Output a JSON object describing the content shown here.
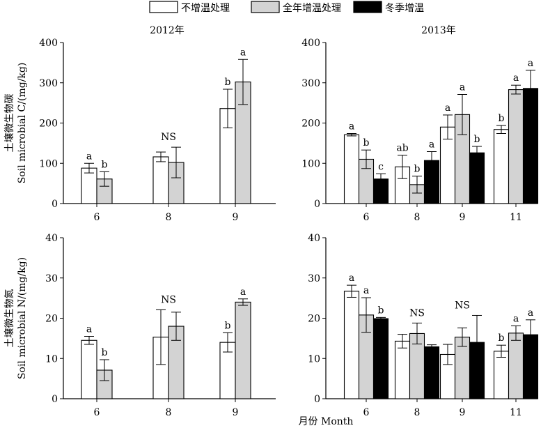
{
  "legend": [
    {
      "label": "不增温处理",
      "color": "#ffffff"
    },
    {
      "label": "全年增温处理",
      "color": "#d3d3d3"
    },
    {
      "label": "冬季增温",
      "color": "#000000"
    }
  ],
  "shared_xlabel": "月份 Month",
  "chart_data": [
    {
      "type": "bar",
      "title": "2012年",
      "ylabel": "土壤微生物碳 Soil microbial C/(mg/kg)",
      "ylim": [
        0,
        400
      ],
      "yticks": [
        0,
        100,
        200,
        300,
        400
      ],
      "categories": [
        "6",
        "8",
        "9"
      ],
      "series": [
        {
          "name": "不增温处理",
          "values": [
            88,
            116,
            236
          ],
          "errors": [
            12,
            12,
            48
          ]
        },
        {
          "name": "全年增温处理",
          "values": [
            61,
            102,
            302
          ],
          "errors": [
            18,
            38,
            56
          ]
        }
      ],
      "annotations": [
        {
          "category": "6",
          "series": 0,
          "label": "a"
        },
        {
          "category": "6",
          "series": 1,
          "label": "b"
        },
        {
          "category": "8",
          "label": "NS"
        },
        {
          "category": "9",
          "series": 0,
          "label": "b"
        },
        {
          "category": "9",
          "series": 1,
          "label": "a"
        }
      ]
    },
    {
      "type": "bar",
      "title": "2013年",
      "ylabel": "",
      "ylim": [
        0,
        400
      ],
      "yticks": [
        0,
        100,
        200,
        300,
        400
      ],
      "categories": [
        "6",
        "8",
        "9",
        "11"
      ],
      "series": [
        {
          "name": "不增温处理",
          "values": [
            171,
            91,
            190,
            184
          ],
          "errors": [
            3,
            29,
            30,
            10
          ]
        },
        {
          "name": "全年增温处理",
          "values": [
            110,
            47,
            221,
            283
          ],
          "errors": [
            23,
            21,
            50,
            11
          ]
        },
        {
          "name": "冬季增温",
          "values": [
            61,
            107,
            126,
            286
          ],
          "errors": [
            13,
            22,
            16,
            45
          ]
        }
      ],
      "annotations": [
        {
          "category": "6",
          "series": 0,
          "label": "a"
        },
        {
          "category": "6",
          "series": 1,
          "label": "b"
        },
        {
          "category": "6",
          "series": 2,
          "label": "c"
        },
        {
          "category": "8",
          "series": 0,
          "label": "ab"
        },
        {
          "category": "8",
          "series": 1,
          "label": "b"
        },
        {
          "category": "8",
          "series": 2,
          "label": "a"
        },
        {
          "category": "9",
          "series": 0,
          "label": "a"
        },
        {
          "category": "9",
          "series": 1,
          "label": "a"
        },
        {
          "category": "9",
          "series": 2,
          "label": "b"
        },
        {
          "category": "11",
          "series": 0,
          "label": "b"
        },
        {
          "category": "11",
          "series": 1,
          "label": "a"
        },
        {
          "category": "11",
          "series": 2,
          "label": "a"
        }
      ]
    },
    {
      "type": "bar",
      "title": "",
      "ylabel": "土壤微生物氮 Soil microbial N/(mg/kg)",
      "ylim": [
        0,
        40
      ],
      "yticks": [
        0,
        10,
        20,
        30,
        40
      ],
      "categories": [
        "6",
        "8",
        "9"
      ],
      "series": [
        {
          "name": "不增温处理",
          "values": [
            14.5,
            15.3,
            14
          ],
          "errors": [
            1,
            6.8,
            2.4
          ]
        },
        {
          "name": "全年增温处理",
          "values": [
            7.1,
            18,
            24
          ],
          "errors": [
            2.6,
            3.5,
            0.8
          ]
        }
      ],
      "annotations": [
        {
          "category": "6",
          "series": 0,
          "label": "a"
        },
        {
          "category": "6",
          "series": 1,
          "label": "b"
        },
        {
          "category": "8",
          "label": "NS"
        },
        {
          "category": "9",
          "series": 0,
          "label": "b"
        },
        {
          "category": "9",
          "series": 1,
          "label": "a"
        }
      ]
    },
    {
      "type": "bar",
      "title": "",
      "ylabel": "",
      "ylim": [
        0,
        40
      ],
      "yticks": [
        0,
        10,
        20,
        30,
        40
      ],
      "categories": [
        "6",
        "8",
        "9",
        "11"
      ],
      "series": [
        {
          "name": "不增温处理",
          "values": [
            26.7,
            14.3,
            11,
            11.8
          ],
          "errors": [
            1.5,
            1.7,
            2.5,
            1.5
          ]
        },
        {
          "name": "全年增温处理",
          "values": [
            20.8,
            16.2,
            15.3,
            16.3
          ],
          "errors": [
            4.3,
            2.6,
            2.3,
            1.8
          ]
        },
        {
          "name": "冬季增温",
          "values": [
            19.9,
            12.9,
            14,
            15.9
          ],
          "errors": [
            0.3,
            0.5,
            6.7,
            3.7
          ]
        }
      ],
      "annotations": [
        {
          "category": "6",
          "series": 0,
          "label": "a"
        },
        {
          "category": "6",
          "series": 1,
          "label": "a"
        },
        {
          "category": "6",
          "series": 2,
          "label": "b"
        },
        {
          "category": "8",
          "label": "NS"
        },
        {
          "category": "9",
          "label": "NS"
        },
        {
          "category": "11",
          "series": 0,
          "label": "b"
        },
        {
          "category": "11",
          "series": 1,
          "label": "a"
        },
        {
          "category": "11",
          "series": 2,
          "label": "a"
        }
      ]
    }
  ]
}
